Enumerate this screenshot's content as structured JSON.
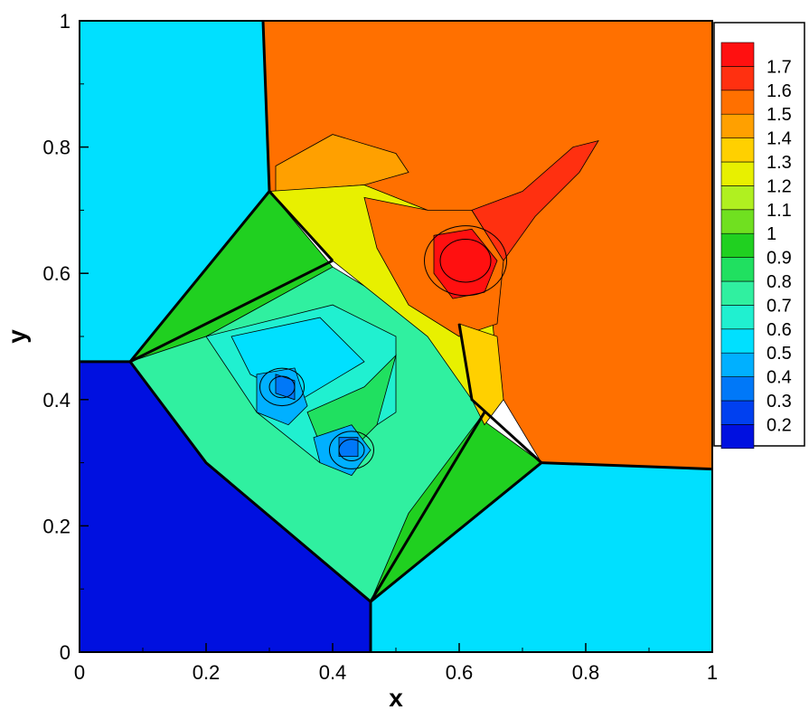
{
  "chart_data": {
    "type": "heatmap",
    "title": "",
    "xlabel": "x",
    "ylabel": "y",
    "xlim": [
      0,
      1
    ],
    "ylim": [
      0,
      1
    ],
    "grid": false,
    "x_ticks": [
      "0",
      "0.2",
      "0.4",
      "0.6",
      "0.8",
      "1"
    ],
    "y_ticks": [
      "0",
      "0.2",
      "0.4",
      "0.6",
      "0.8",
      "1"
    ],
    "legend_position": "top-right",
    "colorbar": {
      "levels": [
        "0.2",
        "0.3",
        "0.4",
        "0.5",
        "0.6",
        "0.7",
        "0.8",
        "0.9",
        "1",
        "1.1",
        "1.2",
        "1.3",
        "1.4",
        "1.5",
        "1.6",
        "1.7"
      ],
      "colors": [
        "#0010e0",
        "#0040f0",
        "#0078f8",
        "#00b0ff",
        "#00e0ff",
        "#20f0d0",
        "#30f0a0",
        "#20e060",
        "#20d020",
        "#70e020",
        "#b0f020",
        "#e8f000",
        "#ffd000",
        "#ffa000",
        "#ff7000",
        "#ff3010",
        "#ff1010"
      ]
    },
    "regions": [
      {
        "name": "top-left",
        "value": 0.55,
        "polygon": [
          [
            0,
            1
          ],
          [
            0.29,
            1
          ],
          [
            0.3,
            0.73
          ],
          [
            0.08,
            0.46
          ],
          [
            0,
            0.46
          ]
        ]
      },
      {
        "name": "top-right",
        "value": 1.5,
        "polygon": [
          [
            0.29,
            1
          ],
          [
            1,
            1
          ],
          [
            1,
            0.29
          ],
          [
            0.73,
            0.3
          ],
          [
            0.67,
            0.4
          ],
          [
            0.6,
            0.55
          ],
          [
            0.45,
            0.62
          ],
          [
            0.3,
            0.73
          ]
        ]
      },
      {
        "name": "bottom-left",
        "value": 0.15,
        "polygon": [
          [
            0,
            0.46
          ],
          [
            0.08,
            0.46
          ],
          [
            0.2,
            0.3
          ],
          [
            0.46,
            0.08
          ],
          [
            0.46,
            0
          ],
          [
            0,
            0
          ]
        ]
      },
      {
        "name": "bottom-right",
        "value": 0.55,
        "polygon": [
          [
            0.46,
            0
          ],
          [
            0.46,
            0.08
          ],
          [
            0.73,
            0.3
          ],
          [
            1,
            0.29
          ],
          [
            1,
            0
          ]
        ]
      },
      {
        "name": "upper-left-band",
        "value": 0.95,
        "polygon": [
          [
            0.08,
            0.46
          ],
          [
            0.3,
            0.73
          ],
          [
            0.4,
            0.61
          ],
          [
            0.2,
            0.5
          ]
        ]
      },
      {
        "name": "lower-right-band",
        "value": 0.95,
        "polygon": [
          [
            0.46,
            0.08
          ],
          [
            0.73,
            0.3
          ],
          [
            0.62,
            0.38
          ],
          [
            0.52,
            0.22
          ]
        ]
      },
      {
        "name": "central-region",
        "value": 0.7,
        "polygon": [
          [
            0.08,
            0.46
          ],
          [
            0.2,
            0.5
          ],
          [
            0.4,
            0.61
          ],
          [
            0.5,
            0.55
          ],
          [
            0.62,
            0.48
          ],
          [
            0.64,
            0.38
          ],
          [
            0.52,
            0.22
          ],
          [
            0.46,
            0.08
          ],
          [
            0.2,
            0.3
          ]
        ]
      },
      {
        "name": "upper-plume",
        "value": 1.4,
        "polygon": [
          [
            0.31,
            0.77
          ],
          [
            0.4,
            0.82
          ],
          [
            0.5,
            0.79
          ],
          [
            0.52,
            0.76
          ],
          [
            0.45,
            0.74
          ],
          [
            0.31,
            0.73
          ]
        ]
      },
      {
        "name": "central-plume-1",
        "value": 1.2,
        "polygon": [
          [
            0.3,
            0.73
          ],
          [
            0.45,
            0.74
          ],
          [
            0.55,
            0.7
          ],
          [
            0.6,
            0.66
          ],
          [
            0.65,
            0.55
          ],
          [
            0.66,
            0.45
          ],
          [
            0.62,
            0.4
          ],
          [
            0.55,
            0.5
          ],
          [
            0.45,
            0.58
          ],
          [
            0.4,
            0.62
          ]
        ]
      },
      {
        "name": "central-plume-2",
        "value": 1.55,
        "polygon": [
          [
            0.45,
            0.72
          ],
          [
            0.55,
            0.7
          ],
          [
            0.62,
            0.7
          ],
          [
            0.67,
            0.62
          ],
          [
            0.66,
            0.52
          ],
          [
            0.6,
            0.5
          ],
          [
            0.52,
            0.55
          ],
          [
            0.47,
            0.64
          ]
        ]
      },
      {
        "name": "jet",
        "value": 1.6,
        "polygon": [
          [
            0.62,
            0.7
          ],
          [
            0.7,
            0.73
          ],
          [
            0.78,
            0.8
          ],
          [
            0.82,
            0.81
          ],
          [
            0.79,
            0.76
          ],
          [
            0.72,
            0.69
          ],
          [
            0.67,
            0.62
          ]
        ]
      },
      {
        "name": "core",
        "value": 1.7,
        "polygon": [
          [
            0.56,
            0.66
          ],
          [
            0.62,
            0.67
          ],
          [
            0.66,
            0.62
          ],
          [
            0.64,
            0.57
          ],
          [
            0.59,
            0.56
          ],
          [
            0.56,
            0.6
          ]
        ]
      },
      {
        "name": "right-yellow-band",
        "value": 1.3,
        "polygon": [
          [
            0.6,
            0.52
          ],
          [
            0.66,
            0.5
          ],
          [
            0.67,
            0.4
          ],
          [
            0.64,
            0.36
          ],
          [
            0.62,
            0.4
          ]
        ]
      },
      {
        "name": "mid-plateau",
        "value": 0.6,
        "polygon": [
          [
            0.2,
            0.5
          ],
          [
            0.4,
            0.55
          ],
          [
            0.5,
            0.5
          ],
          [
            0.5,
            0.38
          ],
          [
            0.38,
            0.3
          ],
          [
            0.28,
            0.38
          ]
        ]
      },
      {
        "name": "upper-mid-plateau",
        "value": 0.55,
        "polygon": [
          [
            0.24,
            0.5
          ],
          [
            0.38,
            0.53
          ],
          [
            0.45,
            0.46
          ],
          [
            0.35,
            0.4
          ],
          [
            0.27,
            0.44
          ]
        ]
      },
      {
        "name": "spiral-body",
        "value": 0.8,
        "polygon": [
          [
            0.36,
            0.38
          ],
          [
            0.45,
            0.42
          ],
          [
            0.5,
            0.47
          ],
          [
            0.47,
            0.36
          ],
          [
            0.42,
            0.31
          ],
          [
            0.38,
            0.33
          ]
        ]
      },
      {
        "name": "left-vortex",
        "value": 0.45,
        "polygon": [
          [
            0.28,
            0.44
          ],
          [
            0.34,
            0.45
          ],
          [
            0.36,
            0.39
          ],
          [
            0.33,
            0.36
          ],
          [
            0.28,
            0.38
          ]
        ]
      },
      {
        "name": "left-vortex-core",
        "value": 0.35,
        "polygon": [
          [
            0.31,
            0.44
          ],
          [
            0.34,
            0.43
          ],
          [
            0.34,
            0.4
          ],
          [
            0.31,
            0.41
          ]
        ]
      },
      {
        "name": "right-vortex",
        "value": 0.45,
        "polygon": [
          [
            0.37,
            0.34
          ],
          [
            0.43,
            0.36
          ],
          [
            0.46,
            0.32
          ],
          [
            0.43,
            0.28
          ],
          [
            0.38,
            0.3
          ]
        ]
      },
      {
        "name": "right-vortex-core",
        "value": 0.35,
        "polygon": [
          [
            0.41,
            0.34
          ],
          [
            0.44,
            0.34
          ],
          [
            0.44,
            0.31
          ],
          [
            0.41,
            0.31
          ]
        ]
      }
    ],
    "shock_lines": [
      [
        [
          0.29,
          1
        ],
        [
          0.3,
          0.73
        ]
      ],
      [
        [
          0.3,
          0.73
        ],
        [
          0.08,
          0.46
        ]
      ],
      [
        [
          0.08,
          0.46
        ],
        [
          0,
          0.46
        ]
      ],
      [
        [
          0.08,
          0.46
        ],
        [
          0.2,
          0.3
        ],
        [
          0.46,
          0.08
        ]
      ],
      [
        [
          0.46,
          0.08
        ],
        [
          0.46,
          0
        ]
      ],
      [
        [
          0.46,
          0.08
        ],
        [
          0.73,
          0.3
        ]
      ],
      [
        [
          0.73,
          0.3
        ],
        [
          1,
          0.29
        ]
      ],
      [
        [
          0.73,
          0.3
        ],
        [
          0.62,
          0.4
        ],
        [
          0.6,
          0.52
        ]
      ],
      [
        [
          0.3,
          0.73
        ],
        [
          0.4,
          0.62
        ]
      ],
      [
        [
          0.08,
          0.46
        ],
        [
          0.4,
          0.62
        ]
      ],
      [
        [
          0.46,
          0.08
        ],
        [
          0.64,
          0.38
        ]
      ]
    ],
    "vortex_rings": [
      {
        "cx": 0.32,
        "cy": 0.42,
        "r": 0.035
      },
      {
        "cx": 0.32,
        "cy": 0.42,
        "r": 0.02
      },
      {
        "cx": 0.43,
        "cy": 0.32,
        "r": 0.035
      },
      {
        "cx": 0.43,
        "cy": 0.32,
        "r": 0.02
      },
      {
        "cx": 0.61,
        "cy": 0.62,
        "r": 0.04
      },
      {
        "cx": 0.61,
        "cy": 0.62,
        "r": 0.065
      }
    ]
  }
}
